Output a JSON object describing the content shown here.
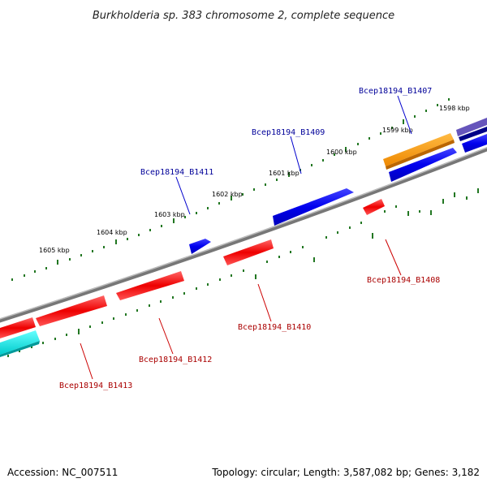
{
  "title": "Burkholderia sp. 383 chromosome 2, complete sequence",
  "footer": {
    "accession": "Accession: NC_007511",
    "summary": "Topology: circular; Length: 3,587,082 bp; Genes: 3,182"
  },
  "colors": {
    "forward_gene": "#0000ee",
    "reverse_gene": "#ee0000",
    "tick": "#227722",
    "backbone": "#888888",
    "forward_label": "#000099",
    "reverse_label": "#aa0000",
    "highlight_orange": "#ff9900",
    "highlight_cyan": "#00eeee",
    "highlight_indigo": "#6655bb"
  },
  "kbp_labels": [
    "1598 kbp",
    "1599 kbp",
    "1600 kbp",
    "1601 kbp",
    "1602 kbp",
    "1603 kbp",
    "1604 kbp",
    "1605 kbp"
  ],
  "gene_labels": [
    {
      "text": "Bcep18194_B1407",
      "strand": "forward"
    },
    {
      "text": "Bcep18194_B1409",
      "strand": "forward"
    },
    {
      "text": "Bcep18194_B1411",
      "strand": "forward"
    },
    {
      "text": "Bcep18194_B1408",
      "strand": "reverse"
    },
    {
      "text": "Bcep18194_B1410",
      "strand": "reverse"
    },
    {
      "text": "Bcep18194_B1412",
      "strand": "reverse"
    },
    {
      "text": "Bcep18194_B1413",
      "strand": "reverse"
    }
  ]
}
